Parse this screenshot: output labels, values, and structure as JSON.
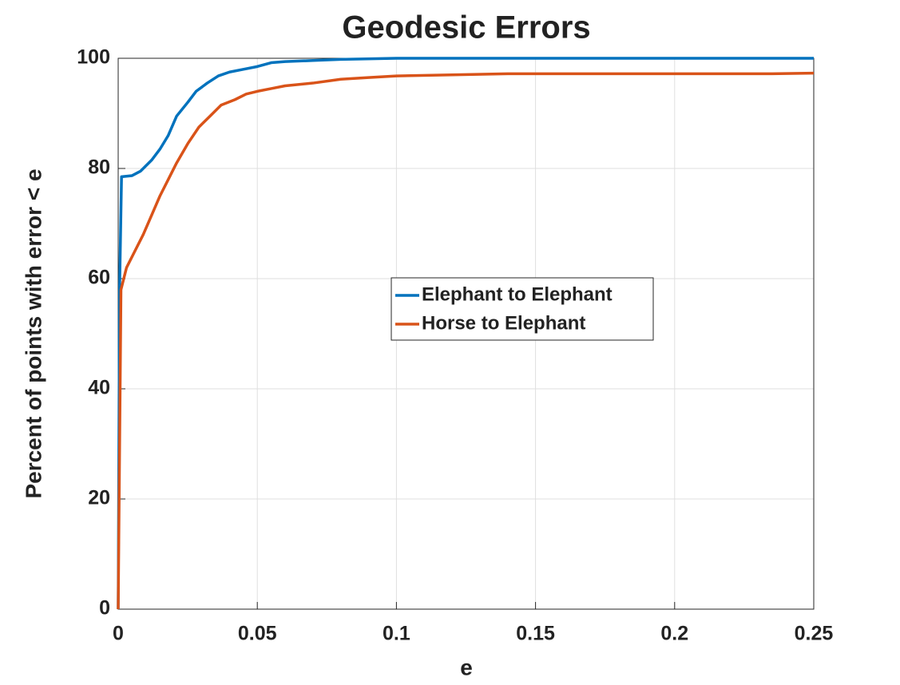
{
  "chart_data": {
    "type": "line",
    "title": "Geodesic Errors",
    "x_label": "e",
    "y_label": "Percent of points with error < e",
    "xlim": [
      0,
      0.25
    ],
    "xticks": [
      0,
      0.05,
      0.1,
      0.15,
      0.2,
      0.25
    ],
    "ylim": [
      0,
      100
    ],
    "yticks": [
      0,
      20,
      40,
      60,
      80,
      100
    ],
    "grid": true,
    "legend": "center",
    "series": [
      {
        "name": "Elephant to Elephant",
        "color": "#0072bd",
        "x": [
          0,
          0.0005,
          0.0012,
          0.005,
          0.008,
          0.012,
          0.015,
          0.018,
          0.021,
          0.025,
          0.028,
          0.032,
          0.036,
          0.04,
          0.045,
          0.05,
          0.055,
          0.06,
          0.07,
          0.08,
          0.1,
          0.25
        ],
        "values": [
          0,
          58,
          78.5,
          78.7,
          79.5,
          81.5,
          83.5,
          86,
          89.5,
          92,
          94,
          95.5,
          96.8,
          97.5,
          98,
          98.5,
          99.2,
          99.4,
          99.6,
          99.8,
          100,
          100
        ]
      },
      {
        "name": "Horse to Elephant",
        "color": "#d95319",
        "x": [
          0,
          0.001,
          0.003,
          0.006,
          0.009,
          0.012,
          0.015,
          0.018,
          0.021,
          0.025,
          0.029,
          0.033,
          0.037,
          0.042,
          0.046,
          0.05,
          0.055,
          0.06,
          0.07,
          0.08,
          0.09,
          0.1,
          0.12,
          0.14,
          0.2,
          0.235,
          0.25
        ],
        "values": [
          0,
          58,
          62,
          65,
          68,
          71.5,
          75,
          78,
          81,
          84.5,
          87.5,
          89.5,
          91.5,
          92.5,
          93.5,
          94,
          94.5,
          95,
          95.5,
          96.2,
          96.5,
          96.8,
          97,
          97.2,
          97.2,
          97.2,
          97.3
        ]
      }
    ]
  }
}
